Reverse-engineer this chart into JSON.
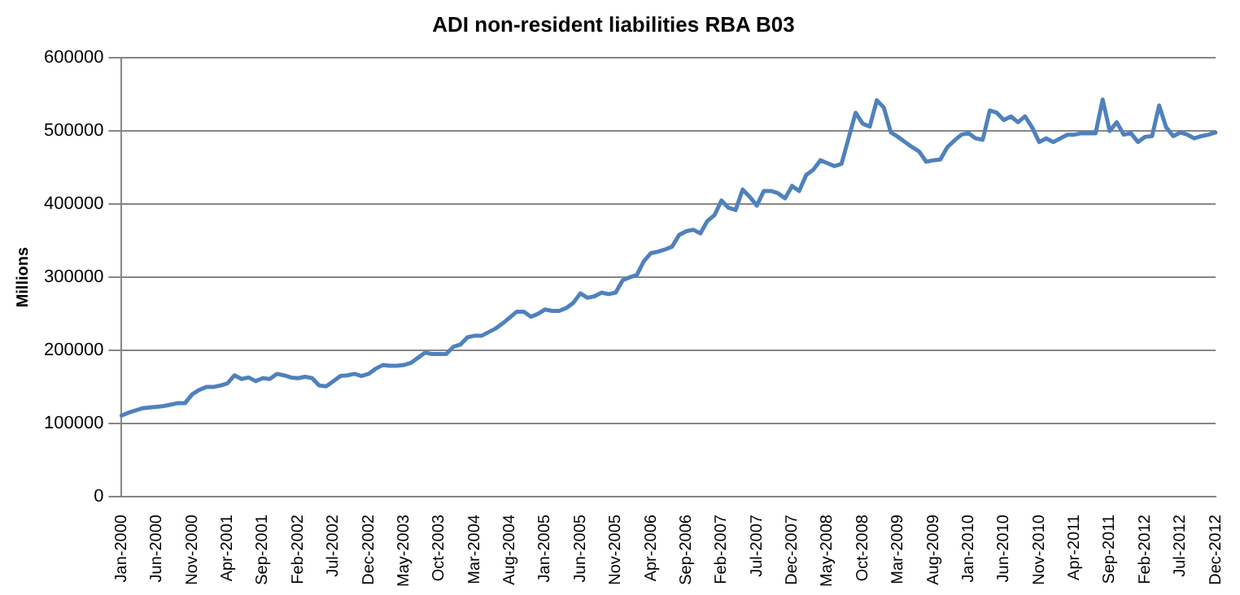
{
  "chart_data": {
    "type": "line",
    "title": "ADI non-resident liabilities RBA B03",
    "ylabel": "Millions",
    "categories": [
      "Jan-2000",
      null,
      null,
      null,
      null,
      "Jun-2000",
      null,
      null,
      null,
      null,
      "Nov-2000",
      null,
      null,
      null,
      null,
      "Apr-2001",
      null,
      null,
      null,
      null,
      "Sep-2001",
      null,
      null,
      null,
      null,
      "Feb-2002",
      null,
      null,
      null,
      null,
      "Jul-2002",
      null,
      null,
      null,
      null,
      "Dec-2002",
      null,
      null,
      null,
      null,
      "May-2003",
      null,
      null,
      null,
      null,
      "Oct-2003",
      null,
      null,
      null,
      null,
      "Mar-2004",
      null,
      null,
      null,
      null,
      "Aug-2004",
      null,
      null,
      null,
      null,
      "Jan-2005",
      null,
      null,
      null,
      null,
      "Jun-2005",
      null,
      null,
      null,
      null,
      "Nov-2005",
      null,
      null,
      null,
      null,
      "Apr-2006",
      null,
      null,
      null,
      null,
      "Sep-2006",
      null,
      null,
      null,
      null,
      "Feb-2007",
      null,
      null,
      null,
      null,
      "Jul-2007",
      null,
      null,
      null,
      null,
      "Dec-2007",
      null,
      null,
      null,
      null,
      "May-2008",
      null,
      null,
      null,
      null,
      "Oct-2008",
      null,
      null,
      null,
      null,
      "Mar-2009",
      null,
      null,
      null,
      null,
      "Aug-2009",
      null,
      null,
      null,
      null,
      "Jan-2010",
      null,
      null,
      null,
      null,
      "Jun-2010",
      null,
      null,
      null,
      null,
      "Nov-2010",
      null,
      null,
      null,
      null,
      "Apr-2011",
      null,
      null,
      null,
      null,
      "Sep-2011",
      null,
      null,
      null,
      null,
      "Feb-2012",
      null,
      null,
      null,
      null,
      "Jul-2012",
      null,
      null,
      null,
      null,
      "Dec-2012"
    ],
    "series": [
      {
        "color": "#4f81bd",
        "values": [
          111000,
          115000,
          118000,
          121000,
          122000,
          123000,
          124000,
          126000,
          128000,
          128000,
          140000,
          146000,
          150000,
          150000,
          152000,
          155000,
          166000,
          161000,
          163000,
          158000,
          162000,
          161000,
          168000,
          166000,
          163000,
          162000,
          164000,
          162000,
          152000,
          151000,
          158000,
          165000,
          166000,
          168000,
          165000,
          168000,
          175000,
          180000,
          179000,
          179000,
          180000,
          183000,
          190000,
          197000,
          195000,
          195000,
          195000,
          205000,
          208000,
          218000,
          220000,
          220000,
          225000,
          230000,
          237000,
          245000,
          253000,
          253000,
          246000,
          250000,
          256000,
          254000,
          254000,
          258000,
          265000,
          278000,
          272000,
          274000,
          279000,
          277000,
          279000,
          296000,
          300000,
          303000,
          322000,
          333000,
          335000,
          338000,
          342000,
          358000,
          363000,
          365000,
          360000,
          377000,
          385000,
          405000,
          395000,
          392000,
          420000,
          410000,
          398000,
          418000,
          418000,
          415000,
          408000,
          425000,
          418000,
          440000,
          447000,
          460000,
          456000,
          452000,
          455000,
          490000,
          525000,
          510000,
          506000,
          542000,
          532000,
          498000,
          492000,
          485000,
          478000,
          472000,
          458000,
          460000,
          461000,
          478000,
          487000,
          495000,
          497000,
          490000,
          488000,
          528000,
          525000,
          515000,
          520000,
          512000,
          520000,
          505000,
          485000,
          490000,
          485000,
          490000,
          495000,
          495000,
          497000,
          497000,
          497000,
          543000,
          500000,
          512000,
          495000,
          497000,
          485000,
          492000,
          493000,
          535000,
          505000,
          493000,
          498000,
          495000,
          490000,
          493000,
          495000,
          498000
        ]
      }
    ],
    "ylim": [
      0,
      600000
    ],
    "yticks": [
      0,
      100000,
      200000,
      300000,
      400000,
      500000,
      600000
    ],
    "grid": "y",
    "legend": false,
    "marker": "none",
    "line_style": "solid"
  }
}
